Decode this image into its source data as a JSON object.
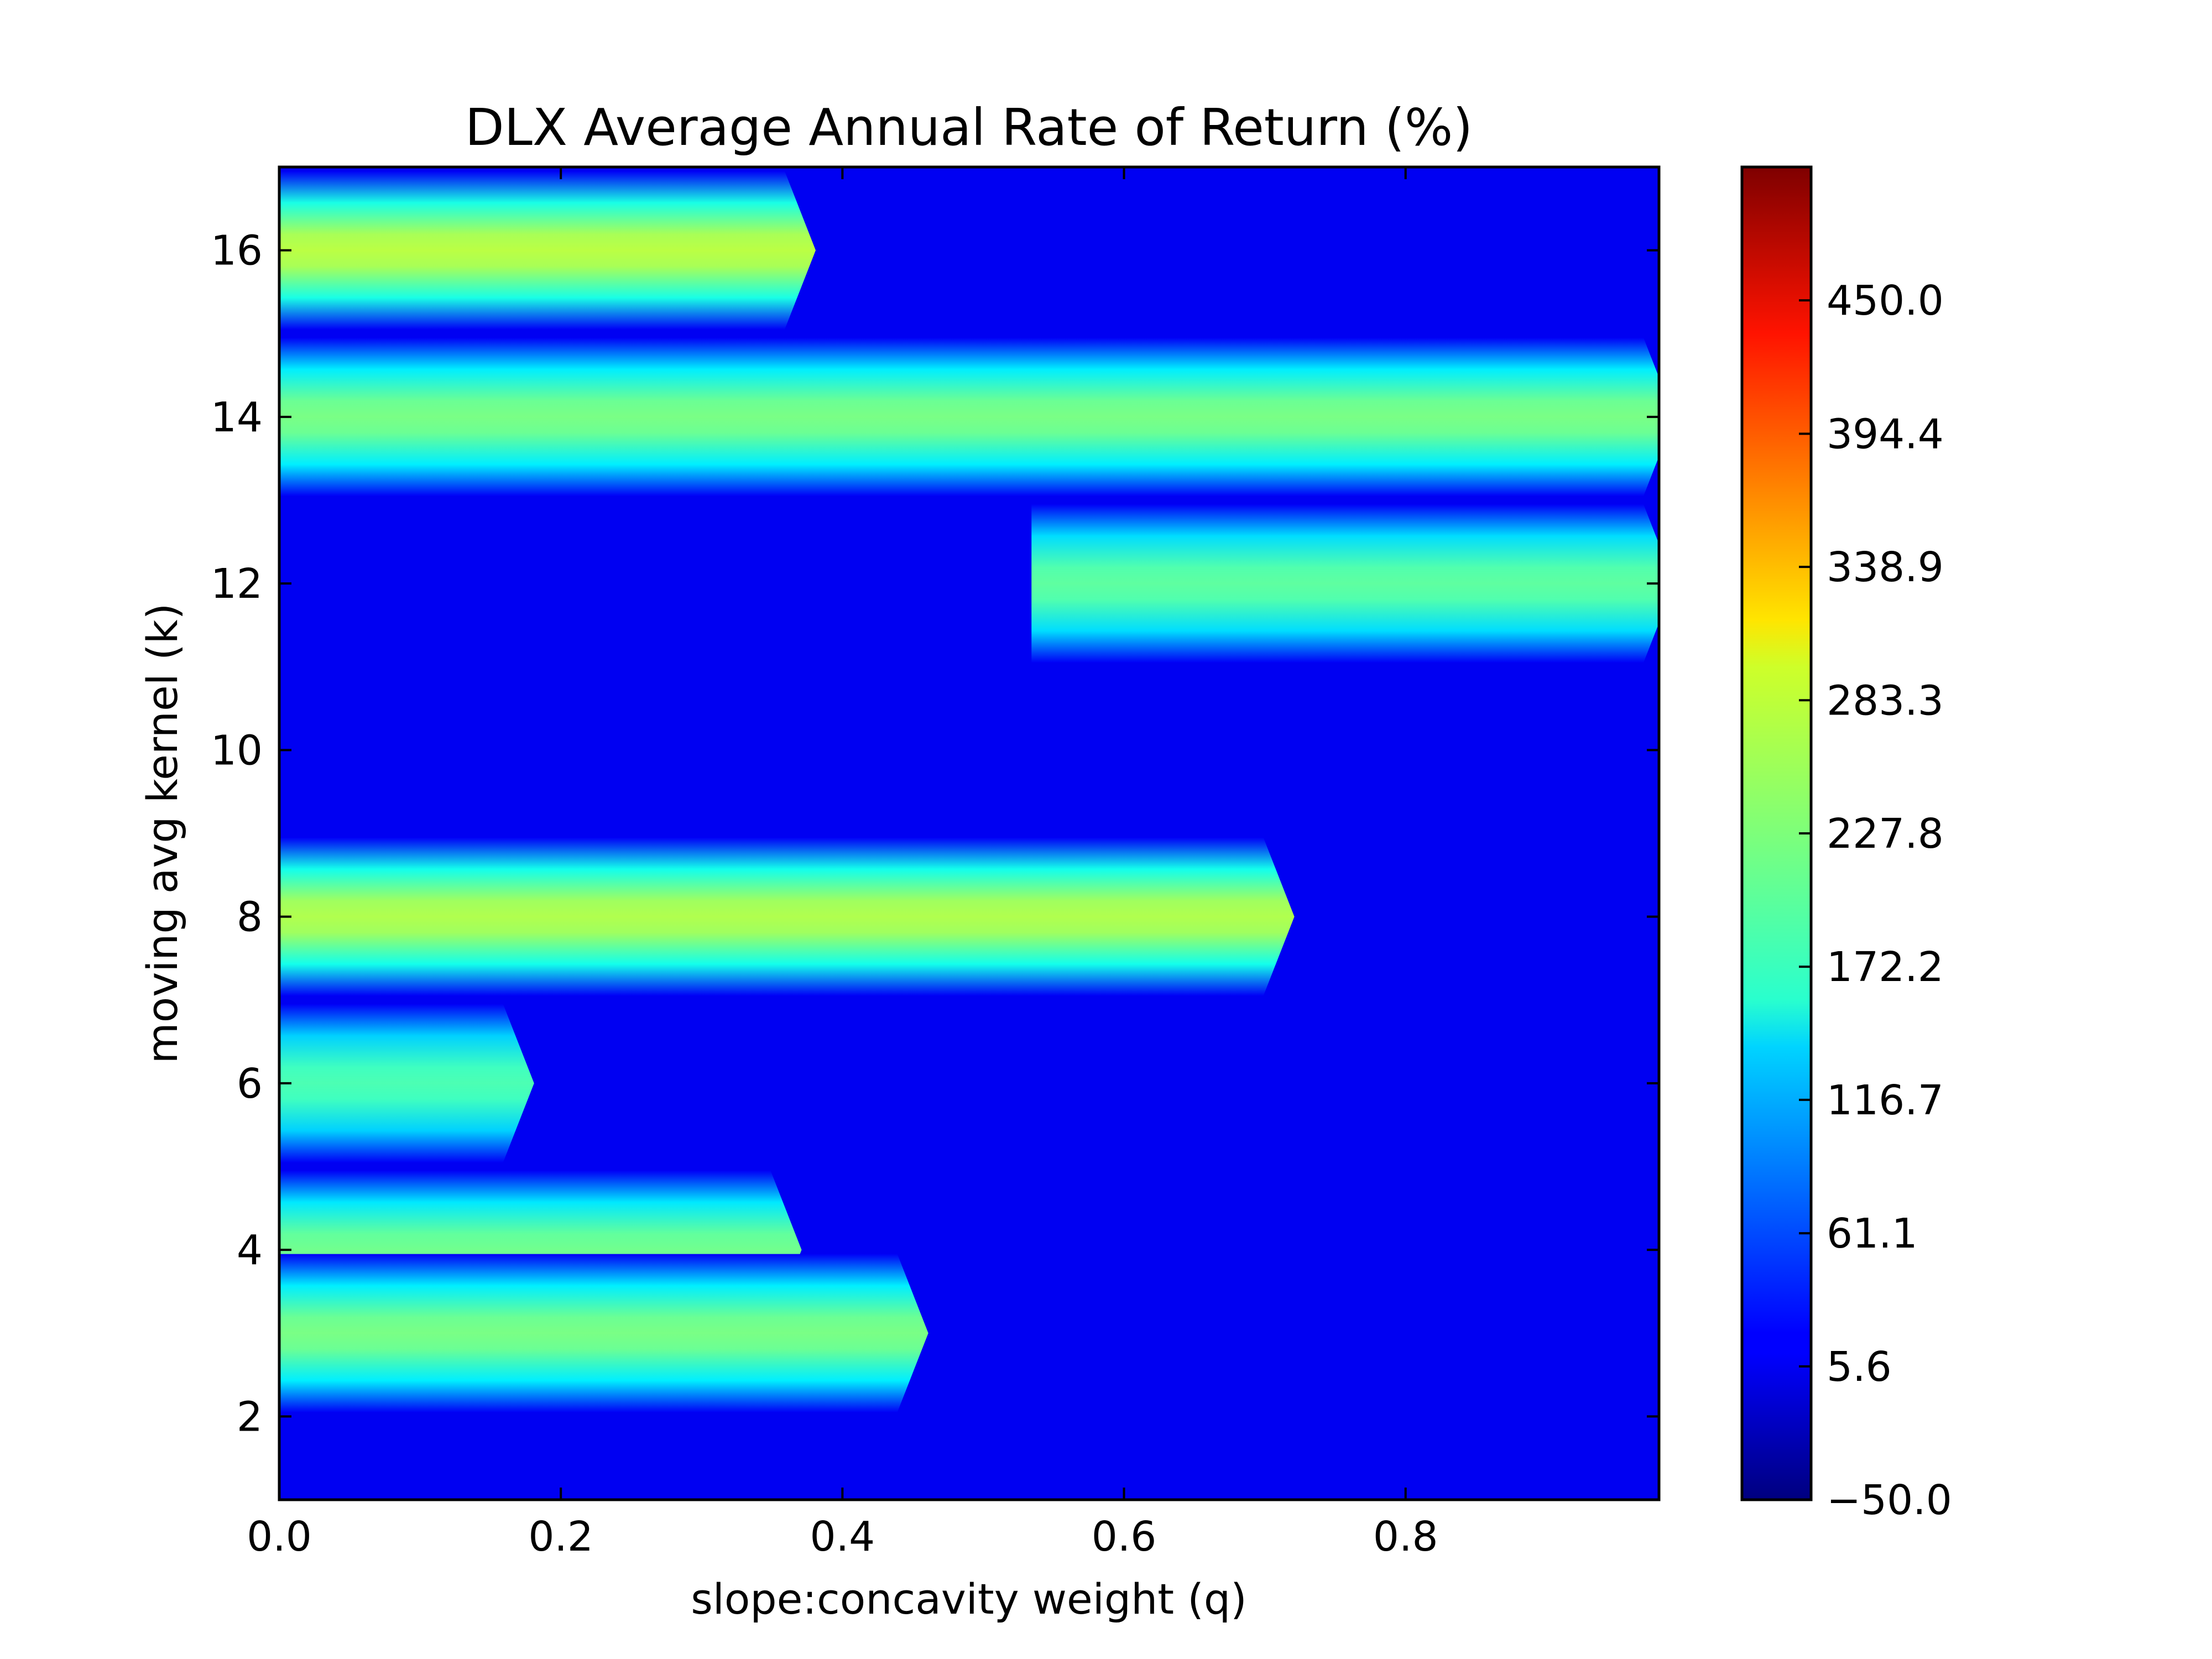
{
  "chart_data": {
    "type": "heatmap",
    "title": "DLX Average Annual Rate of Return (%)",
    "xlabel": "slope:concavity weight (q)",
    "ylabel": "moving avg kernel (k)",
    "xlim": [
      0.0,
      0.98
    ],
    "ylim": [
      1,
      17
    ],
    "x_ticks": [
      "0.0",
      "0.2",
      "0.4",
      "0.6",
      "0.8"
    ],
    "y_ticks": [
      "2",
      "4",
      "6",
      "8",
      "10",
      "12",
      "14",
      "16"
    ],
    "colorbar": {
      "range": [
        -50.0,
        505.6
      ],
      "ticks": [
        "−50.0",
        "5.6",
        "61.1",
        "116.7",
        "172.2",
        "227.8",
        "283.3",
        "338.9",
        "394.4",
        "450.0"
      ],
      "colormap": "jet"
    },
    "baseline_value": 15,
    "bands": [
      {
        "k": 16,
        "q_from": 0.0,
        "q_to": 0.37,
        "peak": 260
      },
      {
        "k": 14,
        "q_from": 0.0,
        "q_to": 0.98,
        "peak": 225
      },
      {
        "k": 12,
        "q_from": 0.55,
        "q_to": 0.98,
        "peak": 210
      },
      {
        "k": 8,
        "q_from": 0.0,
        "q_to": 0.71,
        "peak": 255
      },
      {
        "k": 6,
        "q_from": 0.0,
        "q_to": 0.17,
        "peak": 200
      },
      {
        "k": 4,
        "q_from": 0.0,
        "q_to": 0.36,
        "peak": 220
      },
      {
        "k": 3,
        "q_from": 0.0,
        "q_to": 0.45,
        "peak": 225
      }
    ]
  }
}
